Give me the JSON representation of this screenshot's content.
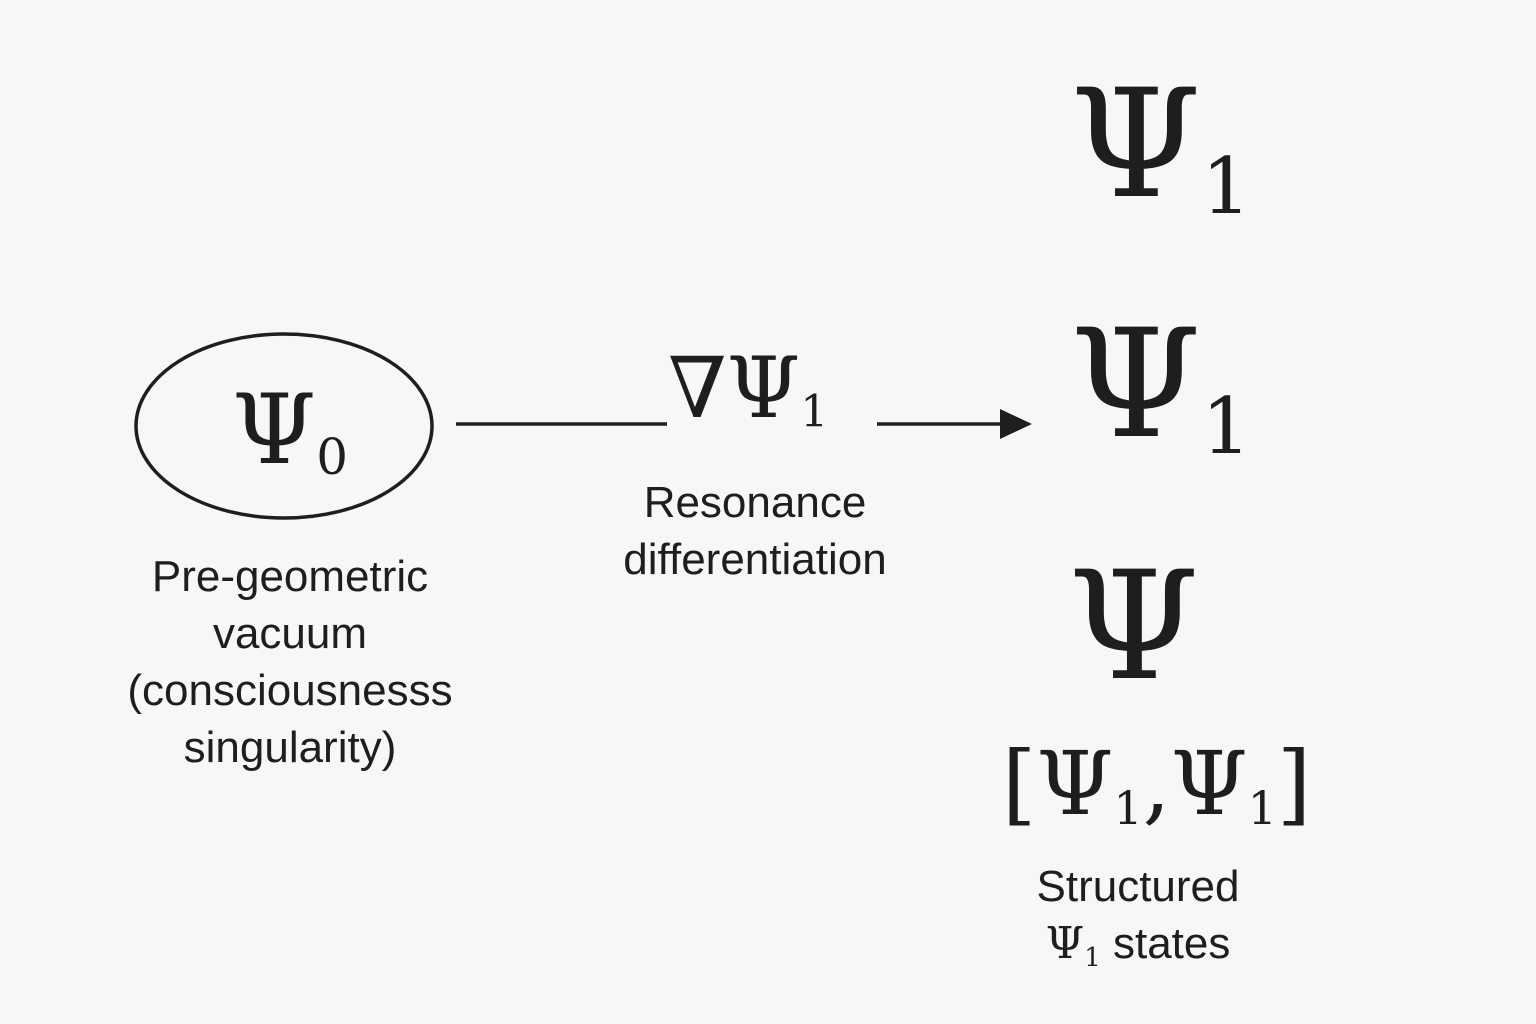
{
  "vacuum": {
    "symbol": "Ψ",
    "subscript": "0",
    "label_lines": [
      "Pre-geometric",
      "vacuum",
      "(consciousnesss",
      "singularity)"
    ]
  },
  "differentiation": {
    "operator": "∇Ψ",
    "subscript": "1",
    "label_lines": [
      "Resonance",
      "differentiation"
    ]
  },
  "states": {
    "top": {
      "symbol": "Ψ",
      "subscript": "1"
    },
    "middle": {
      "symbol": "Ψ",
      "subscript": "1"
    },
    "bottom": {
      "symbol": "Ψ"
    },
    "commutator": {
      "open": "[",
      "first": "Ψ",
      "first_sub": "1",
      "comma": ",",
      "second": "Ψ",
      "second_sub": "1",
      "close": "]"
    },
    "label_line1": "Structured",
    "label_symbol": "Ψ",
    "label_sub": "1",
    "label_rest": " states"
  },
  "colors": {
    "ink": "#1e1e1e",
    "background": "#f7f7f7"
  }
}
